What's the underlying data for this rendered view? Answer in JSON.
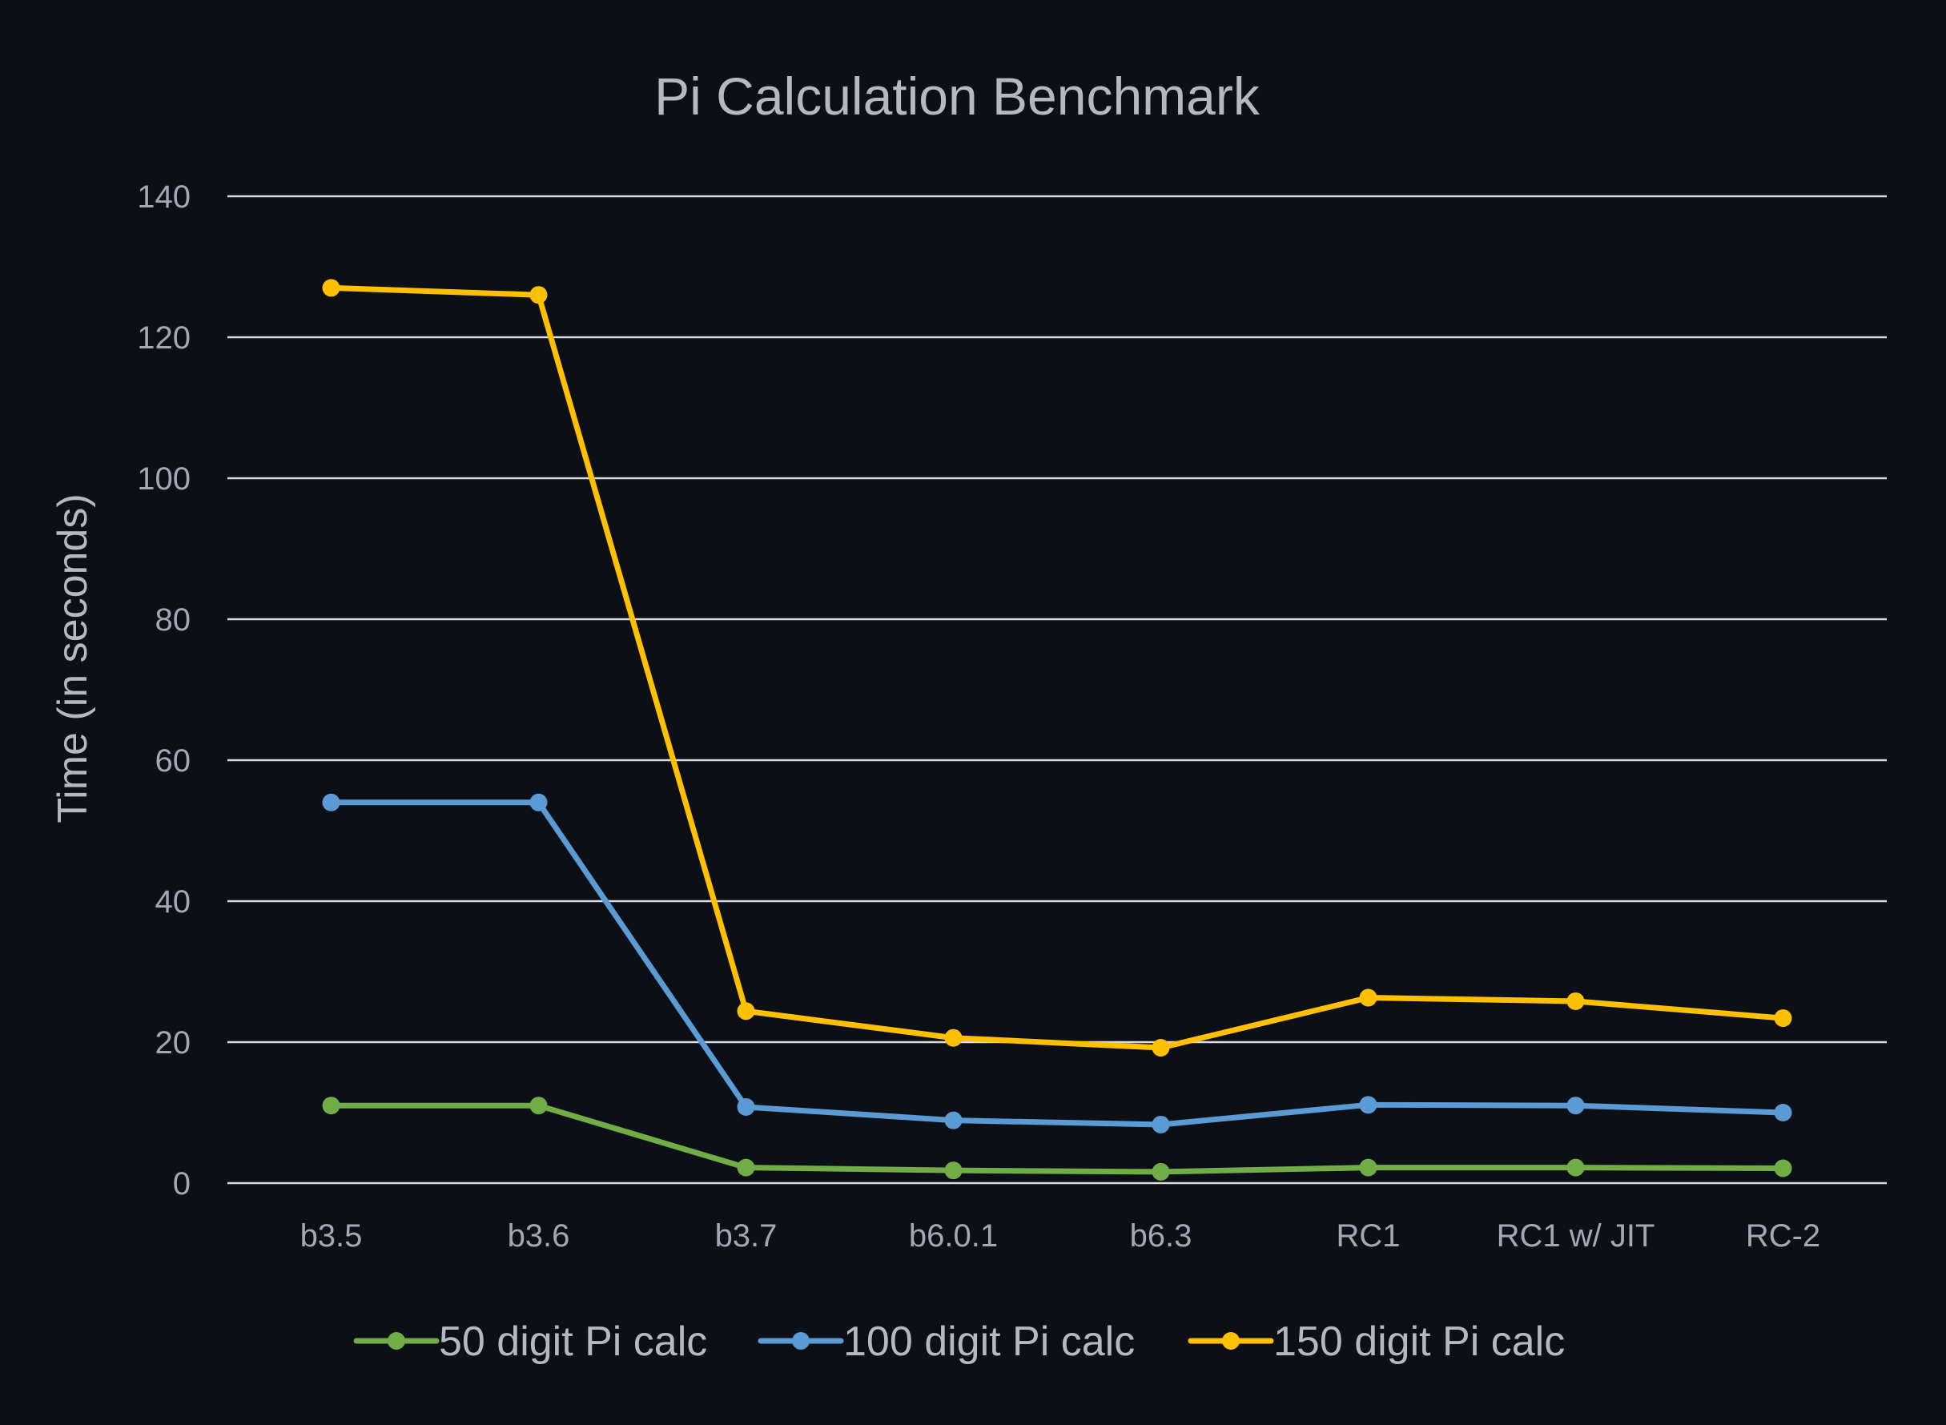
{
  "chart_data": {
    "type": "line",
    "title": "Pi Calculation Benchmark",
    "xlabel": "",
    "ylabel": "Time (in seconds)",
    "ylim": [
      0,
      140
    ],
    "yticks": [
      0,
      20,
      40,
      60,
      80,
      100,
      120,
      140
    ],
    "categories": [
      "b3.5",
      "b3.6",
      "b3.7",
      "b6.0.1",
      "b6.3",
      "RC1",
      "RC1 w/ JIT",
      "RC-2"
    ],
    "grid": true,
    "legend_position": "bottom",
    "series": [
      {
        "name": "50 digit Pi calc",
        "color": "#70ad47",
        "values": [
          11,
          11,
          2.2,
          1.8,
          1.6,
          2.2,
          2.2,
          2.1
        ]
      },
      {
        "name": "100 digit Pi calc",
        "color": "#5b9bd5",
        "values": [
          54,
          54,
          10.8,
          8.9,
          8.3,
          11.1,
          11,
          10
        ]
      },
      {
        "name": "150 digit Pi calc",
        "color": "#ffc000",
        "values": [
          127,
          126,
          24.4,
          20.6,
          19.2,
          26.3,
          25.8,
          23.4
        ]
      }
    ]
  }
}
